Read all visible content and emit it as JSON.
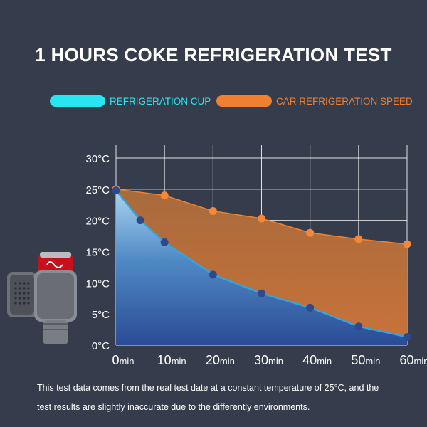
{
  "title": "1 HOURS COKE REFRIGERATION TEST",
  "colors": {
    "background": "#353d4c",
    "cup_line": "#2ba8e8",
    "cup_marker": "#2f4a8c",
    "car_line": "#f07f30",
    "car_marker": "#f4873a",
    "legend_cup": "#27e6f2",
    "legend_car": "#f07f30"
  },
  "legend": [
    {
      "label": "REFRIGERATION CUP",
      "color": "#27e6f2"
    },
    {
      "label": "CAR REFRIGERATION SPEED",
      "color": "#f07f30"
    }
  ],
  "chart_data": {
    "type": "area",
    "title": "1 HOURS COKE REFRIGERATION TEST",
    "x": [
      0,
      5,
      10,
      20,
      30,
      40,
      50,
      60
    ],
    "x_ticks": [
      0,
      10,
      20,
      30,
      40,
      50,
      60
    ],
    "x_tick_labels": [
      {
        "num": "0",
        "unit": "min"
      },
      {
        "num": "10",
        "unit": "min"
      },
      {
        "num": "20",
        "unit": "min"
      },
      {
        "num": "30",
        "unit": "min"
      },
      {
        "num": "40",
        "unit": "min"
      },
      {
        "num": "50",
        "unit": "min"
      },
      {
        "num": "60",
        "unit": "min"
      }
    ],
    "y_ticks": [
      0,
      5,
      10,
      15,
      20,
      25,
      30
    ],
    "y_tick_labels": [
      "0°C",
      "5°C",
      "10°C",
      "15°C",
      "20°C",
      "25°C",
      "30°C"
    ],
    "xlim": [
      0,
      60
    ],
    "ylim": [
      0,
      30
    ],
    "grid": true,
    "legend_position": "top",
    "series": [
      {
        "name": "CAR REFRIGERATION SPEED",
        "x": [
          0,
          10,
          20,
          30,
          40,
          50,
          60
        ],
        "values": [
          25,
          24,
          21.5,
          20.3,
          18,
          17,
          16.2
        ]
      },
      {
        "name": "REFRIGERATION CUP",
        "x": [
          0,
          5,
          10,
          20,
          30,
          40,
          50,
          60
        ],
        "values": [
          24.8,
          20,
          16.5,
          11.3,
          8.3,
          6,
          3,
          1.3
        ]
      }
    ]
  },
  "note": {
    "line1": "This test data comes from the real test date at a constant temperature of 25°C, and  the",
    "line2": "test results are slightly inaccurate due to the differently environments."
  }
}
